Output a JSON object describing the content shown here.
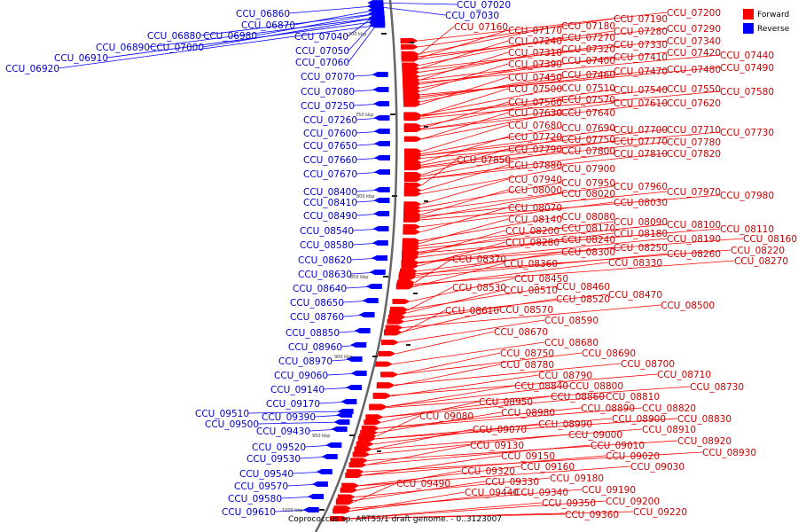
{
  "legend": {
    "items": [
      {
        "label": "Forward",
        "color": "#ff0000"
      },
      {
        "label": "Reverse",
        "color": "#0000ff"
      }
    ]
  },
  "caption": "Coprococcus sp. ART55/1 draft genome. - 0..3123007",
  "ticks": [
    "700 kbp",
    "750 kbp",
    "800 kbp",
    "850 kbp",
    "900 kbp",
    "950 kbp",
    "1000 kbp"
  ],
  "forward_labels": [
    [
      "CCU_07160",
      512,
      34
    ],
    [
      "CCU_07170",
      573,
      38
    ],
    [
      "CCU_07180",
      633,
      33
    ],
    [
      "CCU_07190",
      692,
      25
    ],
    [
      "CCU_07200",
      752,
      18
    ],
    [
      "CCU_07240",
      573,
      50
    ],
    [
      "CCU_07270",
      633,
      46
    ],
    [
      "CCU_07280",
      692,
      39
    ],
    [
      "CCU_07290",
      752,
      36
    ],
    [
      "CCU_07310",
      573,
      63
    ],
    [
      "CCU_07320",
      633,
      59
    ],
    [
      "CCU_07330",
      692,
      54
    ],
    [
      "CCU_07340",
      752,
      50
    ],
    [
      "CCU_07390",
      573,
      76
    ],
    [
      "CCU_07400",
      633,
      72
    ],
    [
      "CCU_07410",
      692,
      68
    ],
    [
      "CCU_07420",
      752,
      63
    ],
    [
      "CCU_07440",
      812,
      66
    ],
    [
      "CCU_07490",
      812,
      80
    ],
    [
      "CCU_07450",
      573,
      91
    ],
    [
      "CCU_07460",
      633,
      88
    ],
    [
      "CCU_07470",
      692,
      84
    ],
    [
      "CCU_07480",
      752,
      82
    ],
    [
      "CCU_07500",
      573,
      104
    ],
    [
      "CCU_07510",
      633,
      103
    ],
    [
      "CCU_07540",
      692,
      105
    ],
    [
      "CCU_07550",
      752,
      104
    ],
    [
      "CCU_07580",
      812,
      107
    ],
    [
      "CCU_07560",
      573,
      119
    ],
    [
      "CCU_07570",
      633,
      116
    ],
    [
      "CCU_07610",
      692,
      120
    ],
    [
      "CCU_07620",
      752,
      120
    ],
    [
      "CCU_07630",
      573,
      131
    ],
    [
      "CCU_07640",
      633,
      131
    ],
    [
      "CCU_07680",
      573,
      145
    ],
    [
      "CCU_07690",
      633,
      148
    ],
    [
      "CCU_07700",
      692,
      150
    ],
    [
      "CCU_07710",
      752,
      150
    ],
    [
      "CCU_07730",
      812,
      153
    ],
    [
      "CCU_07720",
      573,
      158
    ],
    [
      "CCU_07750",
      633,
      161
    ],
    [
      "CCU_07770",
      692,
      163
    ],
    [
      "CCU_07780",
      752,
      164
    ],
    [
      "CCU_07790",
      573,
      172
    ],
    [
      "CCU_07800",
      633,
      174
    ],
    [
      "CCU_07810",
      692,
      177
    ],
    [
      "CCU_07820",
      752,
      177
    ],
    [
      "CCU_07850",
      515,
      184
    ],
    [
      "CCU_07880",
      573,
      190
    ],
    [
      "CCU_07900",
      633,
      194
    ],
    [
      "CCU_07940",
      573,
      206
    ],
    [
      "CCU_07950",
      633,
      210
    ],
    [
      "CCU_07960",
      692,
      214
    ],
    [
      "CCU_07970",
      752,
      220
    ],
    [
      "CCU_07980",
      812,
      224
    ],
    [
      "CCU_08000",
      573,
      218
    ],
    [
      "CCU_08020",
      633,
      222
    ],
    [
      "CCU_08030",
      692,
      232
    ],
    [
      "CCU_08070",
      573,
      238
    ],
    [
      "CCU_08080",
      633,
      248
    ],
    [
      "CCU_08090",
      692,
      254
    ],
    [
      "CCU_08100",
      752,
      257
    ],
    [
      "CCU_08110",
      812,
      262
    ],
    [
      "CCU_08140",
      573,
      251
    ],
    [
      "CCU_08170",
      633,
      261
    ],
    [
      "CCU_08180",
      692,
      267
    ],
    [
      "CCU_08190",
      752,
      273
    ],
    [
      "CCU_08160",
      838,
      273
    ],
    [
      "CCU_08200",
      570,
      264
    ],
    [
      "CCU_08240",
      633,
      274
    ],
    [
      "CCU_08250",
      692,
      283
    ],
    [
      "CCU_08260",
      752,
      290
    ],
    [
      "CCU_08220",
      824,
      286
    ],
    [
      "CCU_08280",
      570,
      277
    ],
    [
      "CCU_08300",
      633,
      288
    ],
    [
      "CCU_08330",
      686,
      300
    ],
    [
      "CCU_08270",
      828,
      298
    ],
    [
      "CCU_08370",
      510,
      296
    ],
    [
      "CCU_08360",
      568,
      301
    ],
    [
      "CCU_08450",
      580,
      318
    ],
    [
      "CCU_08460",
      627,
      327
    ],
    [
      "CCU_08470",
      686,
      336
    ],
    [
      "CCU_08500",
      745,
      348
    ],
    [
      "CCU_08530",
      510,
      328
    ],
    [
      "CCU_08510",
      568,
      331
    ],
    [
      "CCU_08520",
      627,
      341
    ],
    [
      "CCU_08610",
      502,
      354
    ],
    [
      "CCU_08570",
      563,
      353
    ],
    [
      "CCU_08590",
      614,
      365
    ],
    [
      "CCU_08670",
      557,
      378
    ],
    [
      "CCU_08680",
      614,
      390
    ],
    [
      "CCU_08690",
      656,
      402
    ],
    [
      "CCU_08700",
      700,
      414
    ],
    [
      "CCU_08710",
      741,
      426
    ],
    [
      "CCU_08730",
      778,
      440
    ],
    [
      "CCU_08750",
      564,
      402
    ],
    [
      "CCU_08780",
      564,
      415
    ],
    [
      "CCU_08790",
      607,
      427
    ],
    [
      "CCU_08840",
      580,
      439
    ],
    [
      "CCU_08800",
      642,
      439
    ],
    [
      "CCU_08810",
      683,
      451
    ],
    [
      "CCU_08860",
      621,
      451
    ],
    [
      "CCU_08820",
      724,
      464
    ],
    [
      "CCU_08830",
      764,
      476
    ],
    [
      "CCU_08890",
      655,
      464
    ],
    [
      "CCU_08900",
      690,
      476
    ],
    [
      "CCU_08910",
      724,
      488
    ],
    [
      "CCU_08920",
      764,
      501
    ],
    [
      "CCU_08930",
      792,
      514
    ],
    [
      "CCU_08950",
      540,
      457
    ],
    [
      "CCU_08980",
      565,
      469
    ],
    [
      "CCU_08990",
      607,
      482
    ],
    [
      "CCU_09000",
      641,
      494
    ],
    [
      "CCU_09010",
      666,
      506
    ],
    [
      "CCU_09020",
      683,
      518
    ],
    [
      "CCU_09030",
      711,
      530
    ],
    [
      "CCU_09080",
      473,
      473
    ],
    [
      "CCU_09070",
      533,
      488
    ],
    [
      "CCU_09130",
      530,
      506
    ],
    [
      "CCU_09150",
      565,
      518
    ],
    [
      "CCU_09160",
      587,
      530
    ],
    [
      "CCU_09320",
      520,
      535
    ],
    [
      "CCU_09330",
      547,
      547
    ],
    [
      "CCU_09180",
      620,
      543
    ],
    [
      "CCU_09190",
      656,
      556
    ],
    [
      "CCU_09200",
      683,
      569
    ],
    [
      "CCU_09220",
      714,
      581
    ],
    [
      "CCU_09490",
      447,
      549
    ],
    [
      "CCU_09440",
      524,
      559
    ],
    [
      "CCU_09340",
      580,
      559
    ],
    [
      "CCU_09350",
      611,
      571
    ],
    [
      "CCU_09360",
      637,
      584
    ]
  ],
  "reverse_labels": [
    [
      "CCU_06860",
      266,
      19
    ],
    [
      "CCU_06870",
      272,
      32
    ],
    [
      "CCU_06880",
      166,
      44
    ],
    [
      "CCU_06980",
      229,
      44
    ],
    [
      "CCU_06890",
      108,
      57
    ],
    [
      "CCU_07000",
      169,
      57
    ],
    [
      "CCU_06910",
      61,
      69
    ],
    [
      "CCU_06920",
      6,
      81
    ],
    [
      "CCU_07020",
      515,
      9
    ],
    [
      "CCU_07030",
      502,
      21
    ],
    [
      "CCU_07040",
      332,
      45
    ],
    [
      "CCU_07050",
      333,
      61
    ],
    [
      "CCU_07060",
      333,
      74
    ],
    [
      "CCU_07070",
      339,
      90
    ],
    [
      "CCU_07080",
      339,
      107
    ],
    [
      "CCU_07250",
      339,
      123
    ],
    [
      "CCU_07260",
      342,
      139
    ],
    [
      "CCU_07600",
      342,
      154
    ],
    [
      "CCU_07650",
      342,
      168
    ],
    [
      "CCU_07660",
      342,
      184
    ],
    [
      "CCU_07670",
      342,
      200
    ],
    [
      "CCU_08400",
      342,
      220
    ],
    [
      "CCU_08410",
      342,
      232
    ],
    [
      "CCU_08490",
      342,
      247
    ],
    [
      "CCU_08540",
      338,
      264
    ],
    [
      "CCU_08580",
      338,
      280
    ],
    [
      "CCU_08620",
      336,
      297
    ],
    [
      "CCU_08630",
      336,
      313
    ],
    [
      "CCU_08640",
      330,
      329
    ],
    [
      "CCU_08650",
      327,
      345
    ],
    [
      "CCU_08760",
      327,
      361
    ],
    [
      "CCU_08850",
      322,
      379
    ],
    [
      "CCU_08960",
      325,
      395
    ],
    [
      "CCU_08970",
      314,
      411
    ],
    [
      "CCU_09060",
      309,
      427
    ],
    [
      "CCU_09140",
      305,
      443
    ],
    [
      "CCU_09170",
      300,
      459
    ],
    [
      "CCU_09390",
      295,
      474
    ],
    [
      "CCU_09510",
      220,
      470
    ],
    [
      "CCU_09500",
      231,
      482
    ],
    [
      "CCU_09430",
      289,
      490
    ],
    [
      "CCU_09520",
      284,
      508
    ],
    [
      "CCU_09530",
      278,
      521
    ],
    [
      "CCU_09540",
      270,
      538
    ],
    [
      "CCU_09570",
      264,
      552
    ],
    [
      "CCU_09580",
      257,
      566
    ],
    [
      "CCU_09610",
      250,
      581
    ]
  ]
}
